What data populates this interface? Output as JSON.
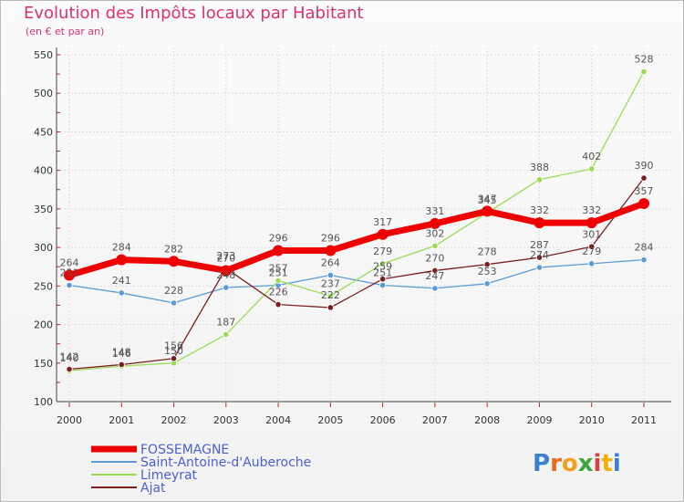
{
  "chart_data": {
    "type": "line",
    "title": "Evolution des Impôts locaux par Habitant",
    "subtitle": "(en € et par an)",
    "xlabel": "",
    "ylabel": "",
    "ylim": [
      100,
      550
    ],
    "yticks": [
      100,
      150,
      200,
      250,
      300,
      350,
      400,
      450,
      500,
      550
    ],
    "categories": [
      "2000",
      "2001",
      "2002",
      "2003",
      "2004",
      "2005",
      "2006",
      "2007",
      "2008",
      "2009",
      "2010",
      "2011"
    ],
    "series": [
      {
        "name": "FOSSEMAGNE",
        "color": "#ee0000",
        "values": [
          264,
          284,
          282,
          270,
          296,
          296,
          317,
          331,
          347,
          332,
          332,
          357
        ]
      },
      {
        "name": "Saint-Antoine-d'Auberoche",
        "color": "#5b9bd5",
        "values": [
          251,
          241,
          228,
          248,
          251,
          264,
          251,
          247,
          253,
          274,
          279,
          284
        ]
      },
      {
        "name": "Limeyrat",
        "color": "#99dd55",
        "values": [
          140,
          146,
          150,
          187,
          257,
          237,
          279,
          302,
          345,
          388,
          402,
          528
        ]
      },
      {
        "name": "Ajat",
        "color": "#7a1e1e",
        "values": [
          142,
          148,
          156,
          273,
          226,
          222,
          259,
          270,
          278,
          287,
          301,
          390
        ]
      }
    ],
    "legend": "bottom-left"
  },
  "logo": {
    "letters": [
      "P",
      "r",
      "o",
      "x",
      "i",
      "t",
      "i"
    ],
    "colors": [
      "#3a7fd0",
      "#e86a1a",
      "#f0a020",
      "#3aa83a",
      "#d94040",
      "#f0b000",
      "#3a7fd0"
    ]
  }
}
